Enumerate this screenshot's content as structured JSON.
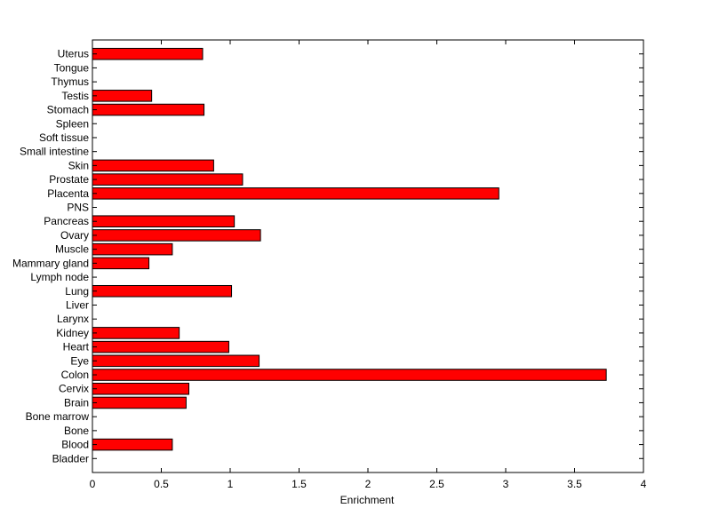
{
  "chart_data": {
    "type": "bar",
    "orientation": "horizontal",
    "categories": [
      "Bladder",
      "Blood",
      "Bone",
      "Bone marrow",
      "Brain",
      "Cervix",
      "Colon",
      "Eye",
      "Heart",
      "Kidney",
      "Larynx",
      "Liver",
      "Lung",
      "Lymph node",
      "Mammary gland",
      "Muscle",
      "Ovary",
      "Pancreas",
      "PNS",
      "Placenta",
      "Prostate",
      "Skin",
      "Small intestine",
      "Soft tissue",
      "Spleen",
      "Stomach",
      "Testis",
      "Thymus",
      "Tongue",
      "Uterus"
    ],
    "values": [
      0,
      0.58,
      0,
      0,
      0.68,
      0.7,
      3.73,
      1.21,
      0.99,
      0.63,
      0,
      0,
      1.01,
      0,
      0.41,
      0.58,
      1.22,
      1.03,
      0,
      2.95,
      1.09,
      0.88,
      0,
      0,
      0,
      0.81,
      0.43,
      0,
      0,
      0.8
    ],
    "xlim": [
      0,
      4
    ],
    "xticks": [
      "0",
      "0.5",
      "1",
      "1.5",
      "2",
      "2.5",
      "3",
      "3.5",
      "4"
    ],
    "xlabel": "Enrichment",
    "ylabel": "",
    "title": "",
    "bar_color": "#ff0000",
    "edge_color": "#000000",
    "grid": false
  }
}
